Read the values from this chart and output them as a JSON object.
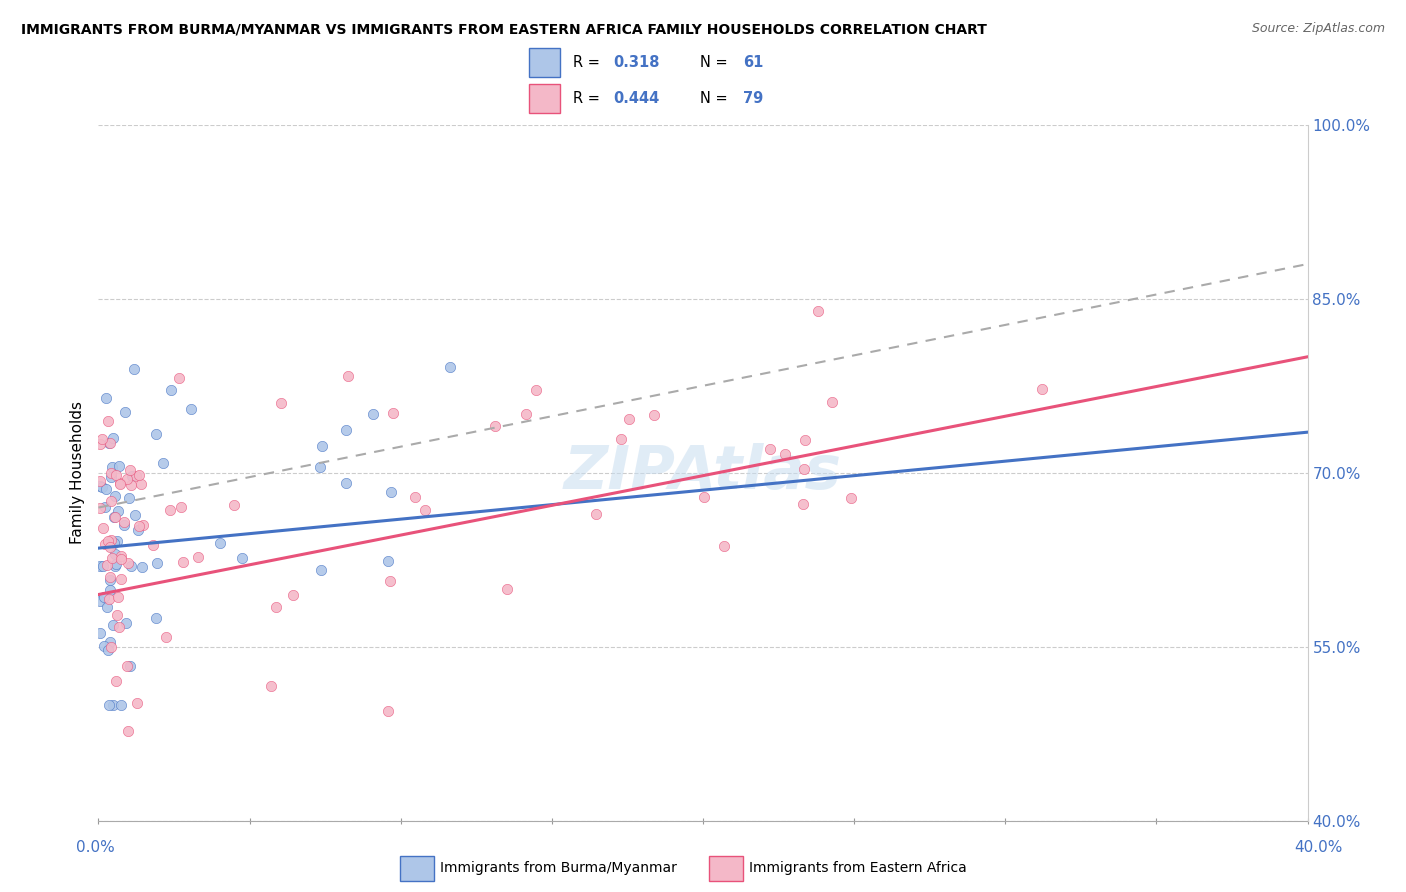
{
  "title": "IMMIGRANTS FROM BURMA/MYANMAR VS IMMIGRANTS FROM EASTERN AFRICA FAMILY HOUSEHOLDS CORRELATION CHART",
  "source": "Source: ZipAtlas.com",
  "ylabel": "Family Households",
  "y_right_ticks": [
    40.0,
    55.0,
    70.0,
    85.0,
    100.0
  ],
  "x_range": [
    0.0,
    40.0
  ],
  "y_range": [
    40.0,
    100.0
  ],
  "watermark": "ZIPAtlas",
  "series1_color": "#aec6e8",
  "series2_color": "#f4b8c8",
  "trend1_color": "#4472c4",
  "trend2_color": "#e8527a",
  "trend_dashed_color": "#aaaaaa",
  "trend1_x0": 0.0,
  "trend1_y0": 63.5,
  "trend1_x1": 40.0,
  "trend1_y1": 73.5,
  "trend2_x0": 0.0,
  "trend2_y0": 59.5,
  "trend2_x1": 40.0,
  "trend2_y1": 80.0,
  "trend_dash_x0": 0.0,
  "trend_dash_y0": 67.0,
  "trend_dash_x1": 40.0,
  "trend_dash_y1": 88.0,
  "s1_seed": 7,
  "s2_seed": 3
}
